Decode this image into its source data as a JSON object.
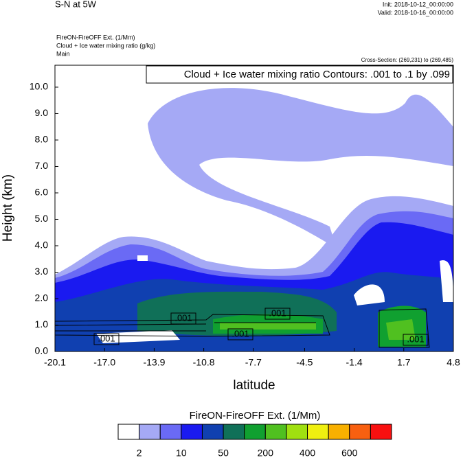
{
  "header": {
    "title": "S-N at 5W",
    "init": "Init: 2018-10-12_00:00:00",
    "valid": "Valid: 2018-10-16_00:00:00",
    "field1": "FireON-FireOFF Ext.   (1/Mm)",
    "field2": "Cloud + Ice water mixing ratio   (g/kg)",
    "run": "Main"
  },
  "chart_data": {
    "type": "contour",
    "cross_section": "Cross-Section: (269,231) to (269,485)",
    "contour_info": "Cloud + Ice water mixing ratio Contours: .001 to .1 by .099",
    "xlabel": "latitude",
    "ylabel": "Height (km)",
    "xlim": [
      -20.1,
      4.8
    ],
    "ylim": [
      0,
      10.83
    ],
    "xticks": [
      -20.1,
      {
        "value": -17,
        "label": "-17.0"
      },
      -13.9,
      -10.8,
      -7.7,
      -4.5,
      -1.4,
      1.7,
      4.8
    ],
    "yticks": [
      {
        "value": 0,
        "label": "0.0"
      },
      {
        "value": 1,
        "label": "1.0"
      },
      {
        "value": 2,
        "label": "2.0"
      },
      {
        "value": 3,
        "label": "3.0"
      },
      {
        "value": 4,
        "label": "4.0"
      },
      {
        "value": 5,
        "label": "5.0"
      },
      {
        "value": 6,
        "label": "6.0"
      },
      {
        "value": 7,
        "label": "7.0"
      },
      {
        "value": 8,
        "label": "8.0"
      },
      {
        "value": 9,
        "label": "9.0"
      },
      {
        "value": 10,
        "label": "10.0"
      }
    ],
    "contour_labels": [
      ".001",
      ".001",
      ".001",
      ".001",
      ".001"
    ],
    "colorbar": {
      "title": "FireON-FireOFF Ext.  (1/Mm)",
      "colors": [
        "#ffffff",
        "#a5a9f5",
        "#6a6af5",
        "#1a1af0",
        "#1040b0",
        "#107058",
        "#10a030",
        "#50c020",
        "#a0e010",
        "#f0f010",
        "#f8b000",
        "#f86010",
        "#f81010"
      ],
      "labels": [
        2,
        10,
        50,
        200,
        400,
        600
      ]
    }
  }
}
